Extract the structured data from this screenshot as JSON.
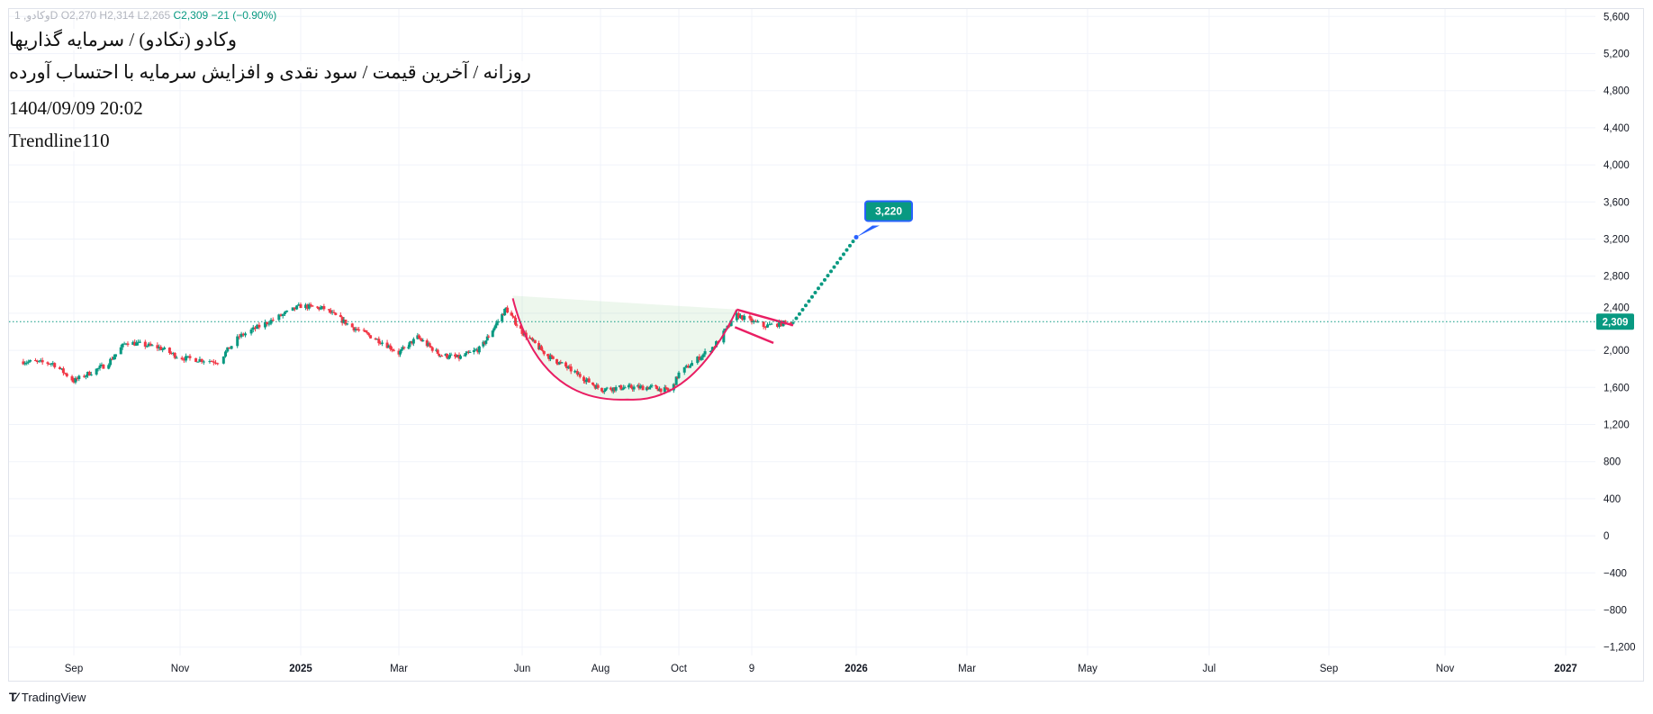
{
  "legend": {
    "symbol": "وکادو, 1D",
    "open": "O2,270",
    "high": "H2,314",
    "low": "L2,265",
    "close": "C2,309",
    "change": "−21 (−0.90%)"
  },
  "titles": {
    "line1": "وکادو (تکادو) / سرمایه گذاریها",
    "line2": "روزانه / آخرین قیمت / سود نقدی و افزایش سرمایه با احتساب آورده",
    "datetime": "1404/09/09 20:02",
    "author": "Trendline110"
  },
  "footer": {
    "brand": "TradingView"
  },
  "colors": {
    "up": "#089981",
    "down": "#f23645",
    "pattern": "#e91e63",
    "cup_fill": "#4caf50",
    "target_label": "#089981",
    "target_border": "#2962ff"
  },
  "chart_data": {
    "type": "candlestick",
    "title": "",
    "ylim": [
      -1200,
      5600
    ],
    "y_ticks": [
      "5,600",
      "5,200",
      "4,800",
      "4,400",
      "4,000",
      "3,600",
      "3,200",
      "2,800",
      "2,400",
      "2,000",
      "1,600",
      "1,200",
      "800",
      "400",
      "0",
      "−400",
      "−800",
      "−1,200"
    ],
    "y_tick_values": [
      5600,
      5200,
      4800,
      4400,
      4000,
      3600,
      3200,
      2800,
      2400,
      2000,
      1600,
      1200,
      800,
      400,
      0,
      -400,
      -800,
      -1200
    ],
    "x_ticks": [
      {
        "label": "Sep",
        "date": "2024-09-01",
        "bold": false
      },
      {
        "label": "Nov",
        "date": "2024-11-01",
        "bold": false
      },
      {
        "label": "2025",
        "date": "2025-01-01",
        "bold": true
      },
      {
        "label": "Mar",
        "date": "2025-03-01",
        "bold": false
      },
      {
        "label": "Jun",
        "date": "2025-06-01",
        "bold": false
      },
      {
        "label": "Aug",
        "date": "2025-08-01",
        "bold": false
      },
      {
        "label": "Oct",
        "date": "2025-10-01",
        "bold": false
      },
      {
        "label": "9",
        "date": "2025-11-09",
        "bold": false
      },
      {
        "label": "2026",
        "date": "2026-01-01",
        "bold": true
      },
      {
        "label": "Mar",
        "date": "2026-03-01",
        "bold": false
      },
      {
        "label": "May",
        "date": "2026-05-01",
        "bold": false
      },
      {
        "label": "Jul",
        "date": "2026-07-01",
        "bold": false
      },
      {
        "label": "Sep",
        "date": "2026-09-01",
        "bold": false
      },
      {
        "label": "Nov",
        "date": "2026-11-01",
        "bold": false
      },
      {
        "label": "2027",
        "date": "2027-01-01",
        "bold": true
      }
    ],
    "price_path": [
      [
        "2024-08-03",
        1880
      ],
      [
        "2024-08-20",
        1860
      ],
      [
        "2024-09-01",
        1670
      ],
      [
        "2024-09-20",
        1850
      ],
      [
        "2024-10-01",
        2090
      ],
      [
        "2024-10-20",
        2030
      ],
      [
        "2024-11-01",
        1920
      ],
      [
        "2024-11-20",
        1880
      ],
      [
        "2024-12-01",
        2150
      ],
      [
        "2024-12-15",
        2300
      ],
      [
        "2025-01-01",
        2480
      ],
      [
        "2025-01-15",
        2450
      ],
      [
        "2025-02-01",
        2250
      ],
      [
        "2025-02-20",
        2080
      ],
      [
        "2025-03-01",
        1970
      ],
      [
        "2025-03-15",
        2140
      ],
      [
        "2025-04-01",
        1950
      ],
      [
        "2025-04-15",
        1920
      ],
      [
        "2025-05-01",
        2020
      ],
      [
        "2025-05-20",
        2450
      ],
      [
        "2025-06-01",
        2200
      ],
      [
        "2025-06-20",
        1950
      ],
      [
        "2025-07-10",
        1780
      ],
      [
        "2025-08-01",
        1580
      ],
      [
        "2025-08-20",
        1600
      ],
      [
        "2025-09-10",
        1600
      ],
      [
        "2025-09-25",
        1560
      ],
      [
        "2025-10-01",
        1750
      ],
      [
        "2025-10-20",
        2050
      ],
      [
        "2025-11-01",
        2380
      ],
      [
        "2025-11-15",
        2260
      ],
      [
        "2025-11-30",
        2309
      ]
    ],
    "last_price": 2309,
    "last_price_label": "2,309",
    "annotations": {
      "cup": {
        "start": [
          "2025-05-25",
          2560
        ],
        "bottom": [
          "2025-08-22",
          1470
        ],
        "end": [
          "2025-11-01",
          2440
        ]
      },
      "flag_upper": [
        [
          "2025-11-01",
          2440
        ],
        [
          "2025-11-30",
          2270
        ]
      ],
      "flag_lower": [
        [
          "2025-10-31",
          2250
        ],
        [
          "2025-11-20",
          2080
        ]
      ],
      "projection": [
        [
          "2025-11-30",
          2300
        ],
        [
          "2026-01-01",
          3220
        ]
      ],
      "target_label": "3,220"
    }
  }
}
